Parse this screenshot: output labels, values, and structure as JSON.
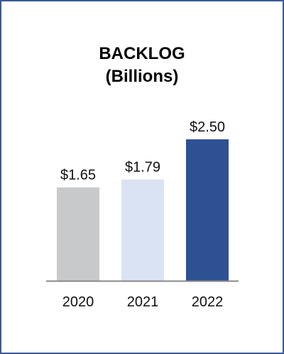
{
  "chart_data": {
    "type": "bar",
    "title": "BACKLOG",
    "subtitle": "(Billions)",
    "categories": [
      "2020",
      "2021",
      "2022"
    ],
    "values": [
      1.65,
      1.79,
      2.5
    ],
    "value_labels": [
      "$1.65",
      "$1.79",
      "$2.50"
    ],
    "colors": [
      "#c8c9cb",
      "#d9e3f3",
      "#2e5194"
    ],
    "axis_color": "#888888",
    "frame_color": "#3b5998",
    "grid": false,
    "legend": "none"
  }
}
